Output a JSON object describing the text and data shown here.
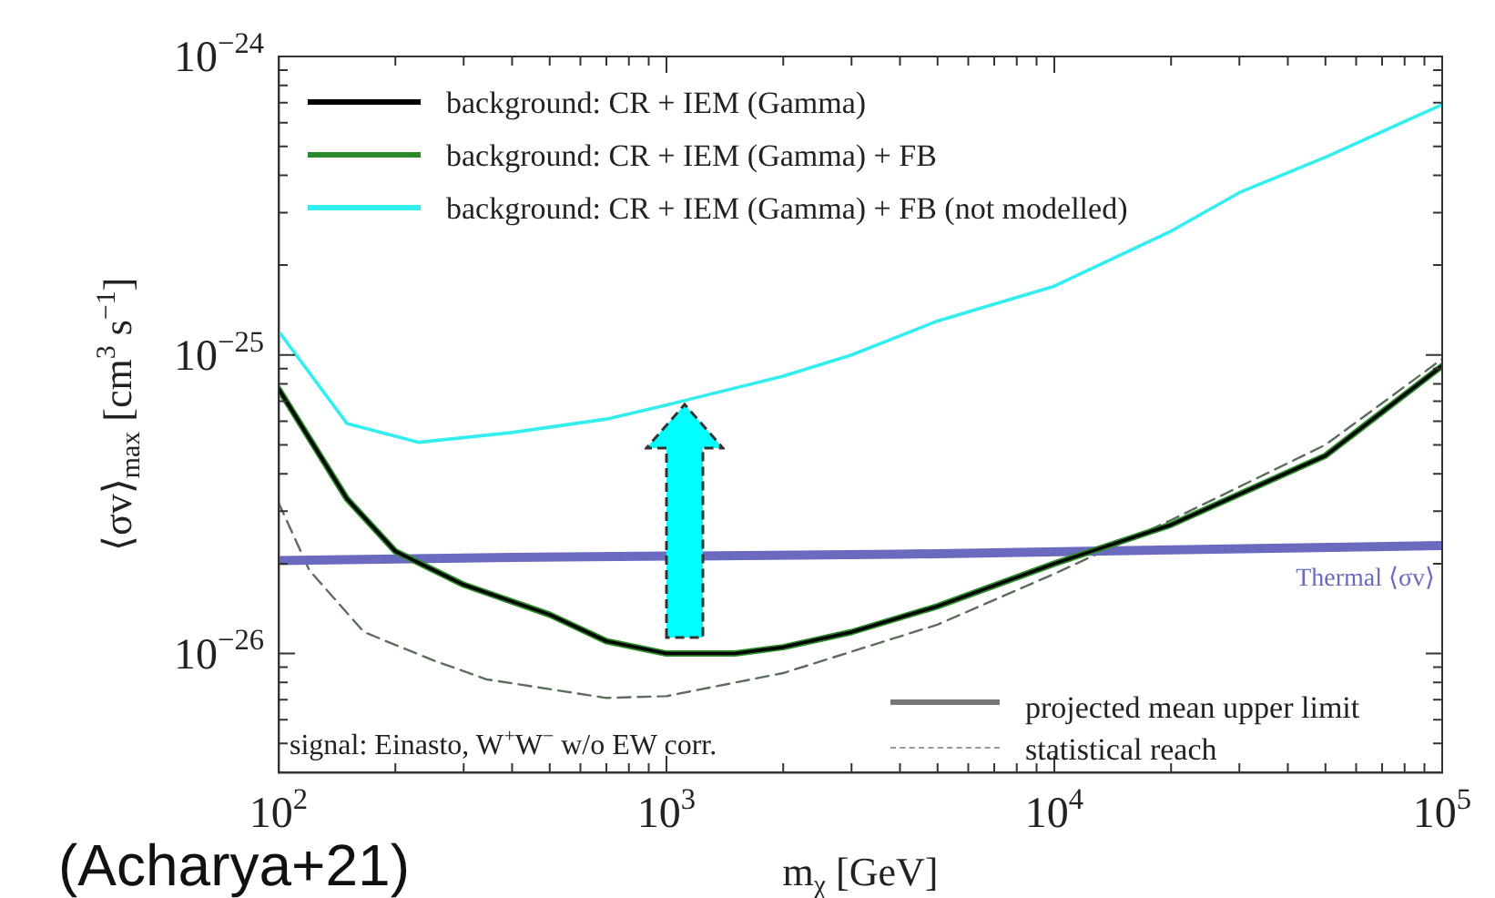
{
  "chart_data": {
    "type": "line",
    "xlabel": "m$_{χ}$ [GeV]",
    "ylabel": "⟨σv⟩$_{max}$ [cm$^{3}$ s$^{−1}$]",
    "log": "xy",
    "grid": false,
    "legend": "top left",
    "marker": "none",
    "xlim": [
      100,
      100000
    ],
    "ylim": [
      4e-27,
      1e-24
    ],
    "xticks": [
      {
        "value": 100,
        "label": "10$^{2}$"
      },
      {
        "value": 200,
        "label": null
      },
      {
        "value": 300,
        "label": null
      },
      {
        "value": 400,
        "label": null
      },
      {
        "value": 500,
        "label": null
      },
      {
        "value": 600,
        "label": null
      },
      {
        "value": 700,
        "label": null
      },
      {
        "value": 800,
        "label": null
      },
      {
        "value": 900,
        "label": null
      },
      {
        "value": 1000,
        "label": "10$^{3}$"
      },
      {
        "value": 2000,
        "label": null
      },
      {
        "value": 3000,
        "label": null
      },
      {
        "value": 4000,
        "label": null
      },
      {
        "value": 5000,
        "label": null
      },
      {
        "value": 6000,
        "label": null
      },
      {
        "value": 7000,
        "label": null
      },
      {
        "value": 8000,
        "label": null
      },
      {
        "value": 9000,
        "label": null
      },
      {
        "value": 10000,
        "label": "10$^{4}$"
      },
      {
        "value": 20000,
        "label": null
      },
      {
        "value": 30000,
        "label": null
      },
      {
        "value": 40000,
        "label": null
      },
      {
        "value": 50000,
        "label": null
      },
      {
        "value": 60000,
        "label": null
      },
      {
        "value": 70000,
        "label": null
      },
      {
        "value": 80000,
        "label": null
      },
      {
        "value": 90000,
        "label": null
      },
      {
        "value": 100000,
        "label": "10$^{5}$"
      }
    ],
    "yticks": [
      {
        "value": 5e-27,
        "label": null
      },
      {
        "value": 6e-27,
        "label": null
      },
      {
        "value": 7e-27,
        "label": null
      },
      {
        "value": 8e-27,
        "label": null
      },
      {
        "value": 9e-27,
        "label": null
      },
      {
        "value": 1e-26,
        "label": "10$^{−26}$"
      },
      {
        "value": 2e-26,
        "label": null
      },
      {
        "value": 3e-26,
        "label": null
      },
      {
        "value": 4e-26,
        "label": null
      },
      {
        "value": 5e-26,
        "label": null
      },
      {
        "value": 6e-26,
        "label": null
      },
      {
        "value": 7e-26,
        "label": null
      },
      {
        "value": 8e-26,
        "label": null
      },
      {
        "value": 9e-26,
        "label": null
      },
      {
        "value": 1e-25,
        "label": "10$^{−25}$"
      },
      {
        "value": 2e-25,
        "label": null
      },
      {
        "value": 3e-25,
        "label": null
      },
      {
        "value": 4e-25,
        "label": null
      },
      {
        "value": 5e-25,
        "label": null
      },
      {
        "value": 6e-25,
        "label": null
      },
      {
        "value": 7e-25,
        "label": null
      },
      {
        "value": 8e-25,
        "label": null
      },
      {
        "value": 9e-25,
        "label": null
      },
      {
        "value": 1e-24,
        "label": "10$^{−24}$"
      }
    ],
    "series": [
      {
        "name": "background: CR + IEM (Gamma)",
        "color": "#000000",
        "x": [
          100,
          150,
          200,
          300,
          500,
          700,
          1000,
          1500,
          2000,
          3000,
          5000,
          10000,
          20000,
          50000,
          100000
        ],
        "values": [
          7.7e-26,
          3.3e-26,
          2.2e-26,
          1.7e-26,
          1.35e-26,
          1.1e-26,
          1e-26,
          1e-26,
          1.05e-26,
          1.18e-26,
          1.44e-26,
          2e-26,
          2.7e-26,
          4.6e-26,
          9.2e-26
        ]
      },
      {
        "name": "background: CR + IEM (Gamma) + FB",
        "color": "#2a8a2a",
        "x": [
          100,
          150,
          200,
          300,
          500,
          700,
          1000,
          1500,
          2000,
          3000,
          5000,
          10000,
          20000,
          50000,
          100000
        ],
        "values": [
          7.7e-26,
          3.3e-26,
          2.2e-26,
          1.7e-26,
          1.35e-26,
          1.1e-26,
          1e-26,
          1e-26,
          1.05e-26,
          1.18e-26,
          1.44e-26,
          2e-26,
          2.7e-26,
          4.6e-26,
          9.2e-26
        ]
      },
      {
        "name": "background: CR + IEM (Gamma) + FB (not modelled)",
        "color": "#33eeee",
        "x": [
          100,
          150,
          230,
          400,
          700,
          1000,
          2000,
          3000,
          5000,
          10000,
          20000,
          30000,
          50000,
          100000
        ],
        "values": [
          1.2e-25,
          5.9e-26,
          5.1e-26,
          5.5e-26,
          6.1e-26,
          6.8e-26,
          8.5e-26,
          1e-25,
          1.3e-25,
          1.7e-25,
          2.6e-25,
          3.5e-25,
          4.6e-25,
          6.9e-25
        ]
      },
      {
        "name": "Thermal ⟨σv⟩",
        "color": "#6a6abf",
        "x": [
          100,
          400,
          4000,
          100000
        ],
        "values": [
          2.05e-26,
          2.1e-26,
          2.15e-26,
          2.3e-26
        ]
      },
      {
        "color": "#5a6e5a",
        "line_style": "dashed",
        "x": [
          100,
          120,
          166,
          250,
          343,
          700,
          1000,
          2000,
          5000,
          10000,
          20000,
          50000,
          100000
        ],
        "values": [
          3.2e-26,
          1.9e-26,
          1.18e-26,
          9.5e-27,
          8.2e-27,
          7.1e-27,
          7.2e-27,
          8.6e-27,
          1.25e-26,
          1.85e-26,
          2.8e-26,
          5e-26,
          9.7e-26
        ]
      }
    ],
    "annotations": [
      "signal: Einasto, W$^{+}$W$^{−}$ w/o EW corr.",
      "projected mean upper limit",
      "statistical reach",
      "(Acharya+21)"
    ]
  }
}
